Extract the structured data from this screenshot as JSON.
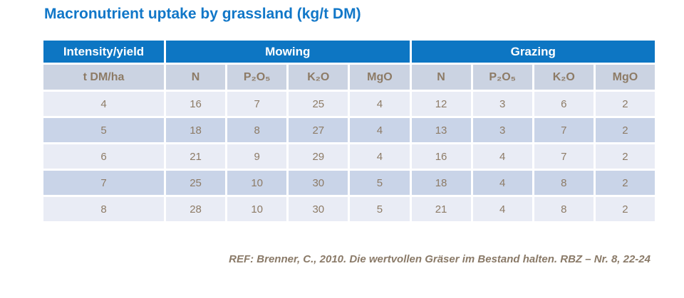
{
  "title": "Macronutrient uptake by grassland (kg/t DM)",
  "table": {
    "group_headers": {
      "intensity": "Intensity/yield",
      "mowing": "Mowing",
      "grazing": "Grazing"
    },
    "column_headers": [
      "t DM/ha",
      "N",
      "P₂O₅",
      "K₂O",
      "MgO",
      "N",
      "P₂O₅",
      "K₂O",
      "MgO"
    ],
    "rows": [
      [
        "4",
        "16",
        "7",
        "25",
        "4",
        "12",
        "3",
        "6",
        "2"
      ],
      [
        "5",
        "18",
        "8",
        "27",
        "4",
        "13",
        "3",
        "7",
        "2"
      ],
      [
        "6",
        "21",
        "9",
        "29",
        "4",
        "16",
        "4",
        "7",
        "2"
      ],
      [
        "7",
        "25",
        "10",
        "30",
        "5",
        "18",
        "4",
        "8",
        "2"
      ],
      [
        "8",
        "28",
        "10",
        "30",
        "5",
        "21",
        "4",
        "8",
        "2"
      ]
    ]
  },
  "footer": {
    "reference": "REF: Brenner, C., 2010. Die wertvollen Gräser im Bestand halten. RBZ – Nr. 8, 22-24"
  },
  "colors": {
    "title_blue": "#1177c8",
    "header_blue": "#0d76c3",
    "subheader_bg": "#cbd3e2",
    "row_light": "#e9ecf5",
    "row_dark": "#c9d4e8",
    "text_brown": "#8d7b66"
  }
}
